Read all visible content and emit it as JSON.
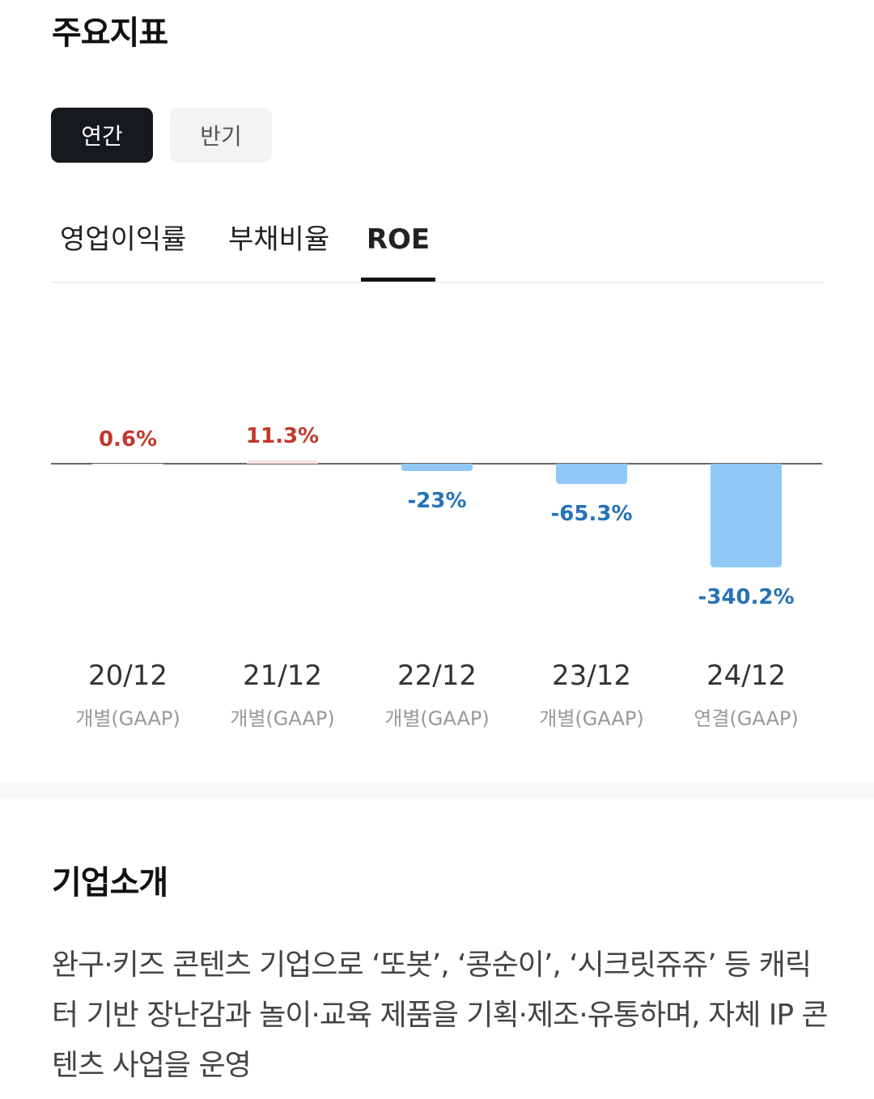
{
  "header": {
    "title": "주요지표"
  },
  "period_toggle": {
    "options": [
      "연간",
      "반기"
    ],
    "selected": "연간"
  },
  "metric_tabs": {
    "items": [
      "영업이익률",
      "부채비율",
      "ROE"
    ],
    "selected": "ROE"
  },
  "chart_data": {
    "type": "bar",
    "categories": [
      "20/12",
      "21/12",
      "22/12",
      "23/12",
      "24/12"
    ],
    "sublabels": [
      "개별(GAAP)",
      "개별(GAAP)",
      "개별(GAAP)",
      "개별(GAAP)",
      "연결(GAAP)"
    ],
    "values": [
      0.6,
      11.3,
      -23,
      -65.3,
      -340.2
    ],
    "value_labels": [
      "0.6%",
      "11.3%",
      "-23%",
      "-65.3%",
      "-340.2%"
    ],
    "colors": {
      "positive_bar": "#fbe0e0",
      "positive_text": "#c0392b",
      "negative_bar": "#90c8f8",
      "negative_text": "#2672b8"
    }
  },
  "company": {
    "title": "기업소개",
    "description": "완구·키즈 콘텐츠 기업으로 ‘또봇’, ‘콩순이’, ‘시크릿쥬쥬’ 등 캐릭터 기반 장난감과 놀이·교육 제품을 기획·제조·유통하며, 자체 IP 콘텐츠 사업을 운영"
  }
}
